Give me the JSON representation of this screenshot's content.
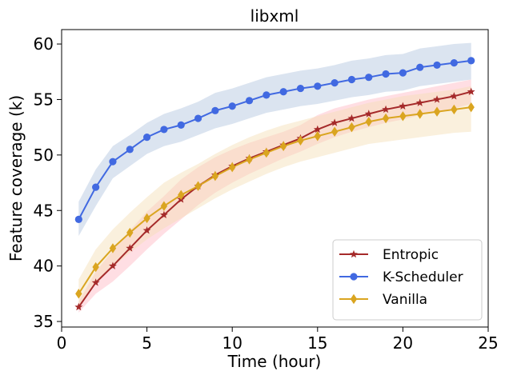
{
  "chart_data": {
    "type": "line",
    "title": "libxml",
    "xlabel": "Time (hour)",
    "ylabel": "Feature coverage (k)",
    "xlim": [
      0,
      25
    ],
    "ylim": [
      34.5,
      61.3
    ],
    "xticks": [
      0,
      5,
      10,
      15,
      20,
      25
    ],
    "yticks": [
      35,
      40,
      45,
      50,
      55,
      60
    ],
    "grid": false,
    "legend_position": "bottom-right",
    "x": [
      1,
      2,
      3,
      4,
      5,
      6,
      7,
      8,
      9,
      10,
      11,
      12,
      13,
      14,
      15,
      16,
      17,
      18,
      19,
      20,
      21,
      22,
      23,
      24
    ],
    "series": [
      {
        "name": "Entropic",
        "color": "#a52a2a",
        "band_color": "#ffb6c1",
        "marker": "star",
        "values": [
          36.3,
          38.5,
          40.0,
          41.6,
          43.2,
          44.6,
          46.0,
          47.2,
          48.2,
          49.0,
          49.7,
          50.3,
          50.9,
          51.5,
          52.3,
          52.9,
          53.3,
          53.7,
          54.1,
          54.4,
          54.7,
          55.0,
          55.3,
          55.7
        ],
        "lower": [
          35.8,
          37.5,
          38.6,
          40.0,
          41.5,
          42.9,
          44.2,
          45.5,
          46.6,
          47.5,
          48.3,
          49.0,
          49.7,
          50.3,
          51.0,
          51.6,
          52.1,
          52.5,
          52.9,
          53.2,
          53.6,
          53.9,
          54.2,
          54.6
        ],
        "upper": [
          36.8,
          39.5,
          41.4,
          43.2,
          44.9,
          46.3,
          47.8,
          48.9,
          49.8,
          50.5,
          51.1,
          51.6,
          52.1,
          52.7,
          53.6,
          54.2,
          54.6,
          55.0,
          55.3,
          55.6,
          55.9,
          56.2,
          56.5,
          56.8
        ]
      },
      {
        "name": "K-Scheduler",
        "color": "#4169e1",
        "band_color": "#b0c4de",
        "marker": "circle",
        "values": [
          44.2,
          47.1,
          49.4,
          50.5,
          51.6,
          52.3,
          52.7,
          53.3,
          54.0,
          54.4,
          54.9,
          55.4,
          55.7,
          56.0,
          56.2,
          56.5,
          56.8,
          57.0,
          57.3,
          57.4,
          57.9,
          58.1,
          58.3,
          58.5
        ],
        "lower": [
          42.7,
          45.4,
          47.9,
          49.0,
          50.1,
          50.8,
          51.2,
          51.8,
          52.4,
          52.8,
          53.3,
          53.8,
          54.1,
          54.4,
          54.6,
          54.9,
          55.2,
          55.4,
          55.7,
          55.8,
          56.2,
          56.4,
          56.6,
          56.8
        ],
        "upper": [
          45.8,
          48.7,
          50.8,
          51.8,
          52.9,
          53.7,
          54.2,
          54.8,
          55.6,
          56.0,
          56.5,
          57.0,
          57.3,
          57.6,
          57.8,
          58.1,
          58.5,
          58.7,
          59.0,
          59.1,
          59.6,
          59.8,
          60.0,
          60.1
        ]
      },
      {
        "name": "Vanilla",
        "color": "#daa520",
        "band_color": "#f5deb3",
        "marker": "diamond",
        "values": [
          37.5,
          39.9,
          41.6,
          43.0,
          44.3,
          45.4,
          46.4,
          47.2,
          48.1,
          48.9,
          49.6,
          50.2,
          50.8,
          51.3,
          51.7,
          52.1,
          52.5,
          53.0,
          53.3,
          53.5,
          53.7,
          53.9,
          54.1,
          54.3
        ],
        "lower": [
          36.3,
          38.4,
          39.9,
          41.2,
          42.4,
          43.4,
          44.3,
          45.2,
          46.1,
          46.9,
          47.6,
          48.3,
          48.9,
          49.4,
          49.8,
          50.2,
          50.6,
          51.0,
          51.2,
          51.4,
          51.6,
          51.8,
          52.0,
          52.1
        ],
        "upper": [
          38.8,
          41.5,
          43.3,
          44.8,
          46.2,
          47.5,
          48.4,
          49.2,
          50.1,
          50.9,
          51.6,
          52.2,
          52.7,
          53.1,
          53.5,
          53.9,
          54.3,
          54.7,
          55.0,
          55.3,
          55.5,
          55.7,
          55.9,
          56.2
        ]
      }
    ]
  }
}
